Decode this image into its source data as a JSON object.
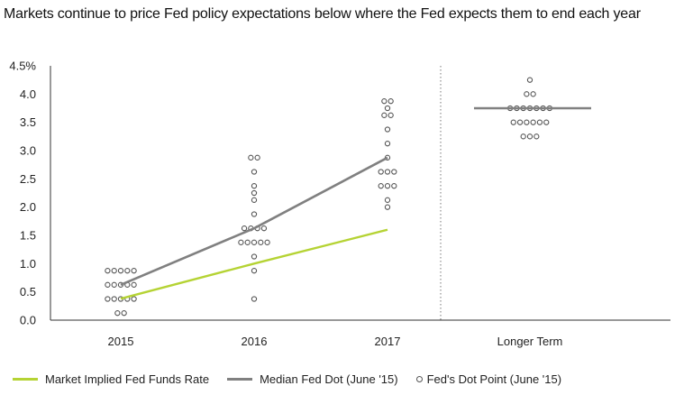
{
  "chart_data": {
    "type": "line",
    "title": "Markets continue to price Fed policy expectations below where the Fed expects them to end each year",
    "categories": [
      "2015",
      "2016",
      "2017",
      "Longer Term"
    ],
    "y_tick_labels": [
      "0.0",
      "0.5",
      "1.0",
      "1.5",
      "2.0",
      "2.5",
      "3.0",
      "3.5",
      "4.0",
      "4.5%"
    ],
    "ylim": [
      0,
      4.5
    ],
    "grid": false,
    "legend_position": "bottom",
    "colors": {
      "market": "#b5d334",
      "median": "#808080",
      "dot": "#555555"
    },
    "series": [
      {
        "name": "Market Implied Fed Funds Rate",
        "kind": "line",
        "color": "#b5d334",
        "values": [
          0.38,
          1.0,
          1.6,
          null
        ]
      },
      {
        "name": "Median Fed Dot (June '15)",
        "kind": "line",
        "color": "#808080",
        "values": [
          0.625,
          1.625,
          2.875,
          3.75
        ]
      },
      {
        "name": "Fed's Dot Point (June '15)",
        "kind": "dots",
        "points": [
          {
            "category": "2015",
            "values": [
              0.125,
              0.125,
              0.375,
              0.375,
              0.375,
              0.375,
              0.375,
              0.625,
              0.625,
              0.625,
              0.625,
              0.625,
              0.875,
              0.875,
              0.875,
              0.875,
              0.875
            ]
          },
          {
            "category": "2016",
            "values": [
              0.375,
              0.875,
              1.125,
              1.375,
              1.375,
              1.375,
              1.375,
              1.375,
              1.625,
              1.625,
              1.625,
              1.625,
              1.875,
              2.125,
              2.25,
              2.375,
              2.625,
              2.875,
              2.875
            ]
          },
          {
            "category": "2017",
            "values": [
              2.0,
              2.125,
              2.375,
              2.375,
              2.375,
              2.625,
              2.625,
              2.625,
              2.875,
              3.125,
              3.375,
              3.625,
              3.625,
              3.75,
              3.875,
              3.875
            ]
          },
          {
            "category": "Longer Term",
            "values": [
              3.25,
              3.25,
              3.25,
              3.5,
              3.5,
              3.5,
              3.5,
              3.5,
              3.5,
              3.75,
              3.75,
              3.75,
              3.75,
              3.75,
              3.75,
              3.75,
              4.0,
              4.0,
              4.25
            ]
          }
        ]
      }
    ]
  }
}
